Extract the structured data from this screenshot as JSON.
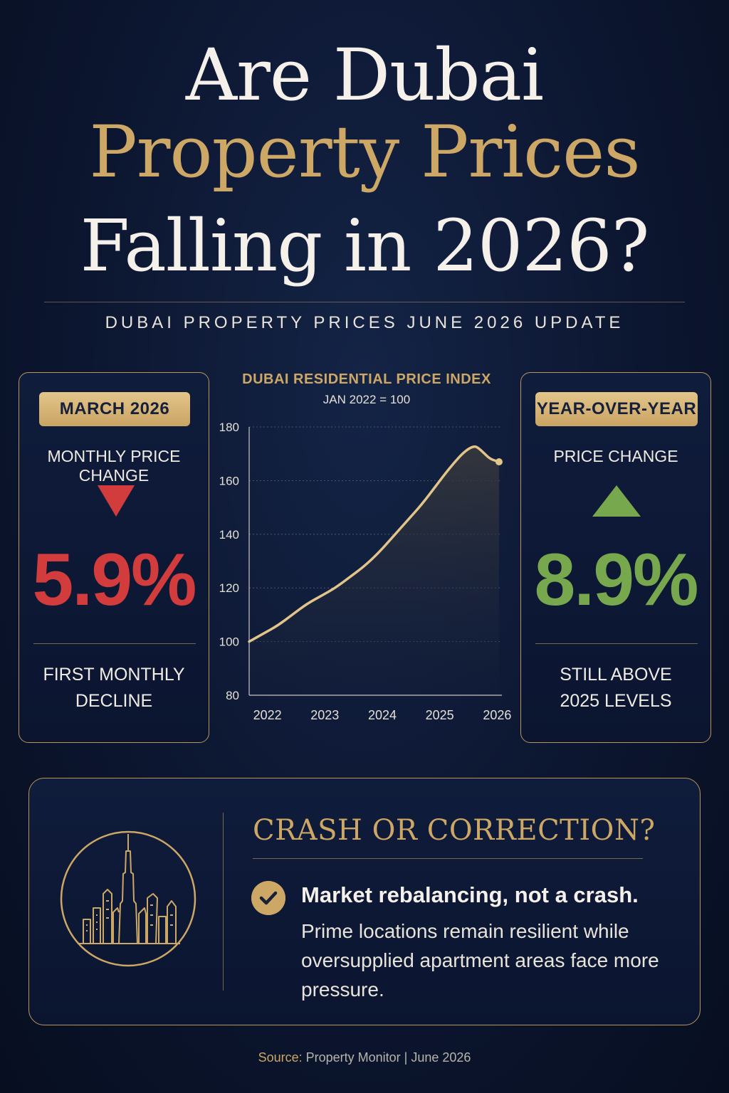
{
  "title": {
    "line1": "Are Dubai",
    "line2": "Property Prices",
    "line3": "Falling in 2026?"
  },
  "subtitle": "DUBAI PROPERTY PRICES JUNE 2026 UPDATE",
  "left_card": {
    "badge": "MARCH 2026",
    "label": "MONTHLY PRICE CHANGE",
    "value": "5.9%",
    "foot_line1": "FIRST MONTHLY",
    "foot_line2": "DECLINE",
    "direction": "down",
    "color": "#d23c3c"
  },
  "right_card": {
    "badge": "YEAR-OVER-YEAR",
    "label": "PRICE CHANGE",
    "value": "8.9%",
    "foot_line1": "STILL ABOVE",
    "foot_line2": "2025 LEVELS",
    "direction": "up",
    "color": "#78a84e"
  },
  "chart_data": {
    "type": "area",
    "title": "DUBAI RESIDENTIAL PRICE INDEX",
    "subtitle": "JAN 2022 = 100",
    "xlabel": "",
    "ylabel": "",
    "xlim": [
      2022,
      2026.4
    ],
    "ylim": [
      80,
      180
    ],
    "yticks": [
      80,
      100,
      120,
      140,
      160,
      180
    ],
    "xticks": [
      2022,
      2023,
      2024,
      2025,
      2026
    ],
    "grid": true,
    "line_color": "#e3c58a",
    "series": [
      {
        "x": [
          2022.0,
          2022.25,
          2022.5,
          2022.75,
          2023.0,
          2023.25,
          2023.5,
          2023.75,
          2024.0,
          2024.25,
          2024.5,
          2024.75,
          2025.0,
          2025.25,
          2025.5,
          2025.75,
          2025.92,
          2026.0,
          2026.1,
          2026.2,
          2026.35
        ],
        "values": [
          100,
          103,
          106,
          110,
          114,
          117,
          120,
          124,
          128,
          133,
          139,
          145,
          151,
          158,
          165,
          171,
          173,
          172,
          170,
          168,
          167
        ]
      }
    ]
  },
  "bottom": {
    "title": "CRASH OR CORRECTION?",
    "point_head": "Market rebalancing, not a crash.",
    "point_body": "Prime locations remain resilient while oversupplied apartment areas face more pressure."
  },
  "source": {
    "label": "Source:",
    "text": "Property Monitor  |  June 2026"
  }
}
